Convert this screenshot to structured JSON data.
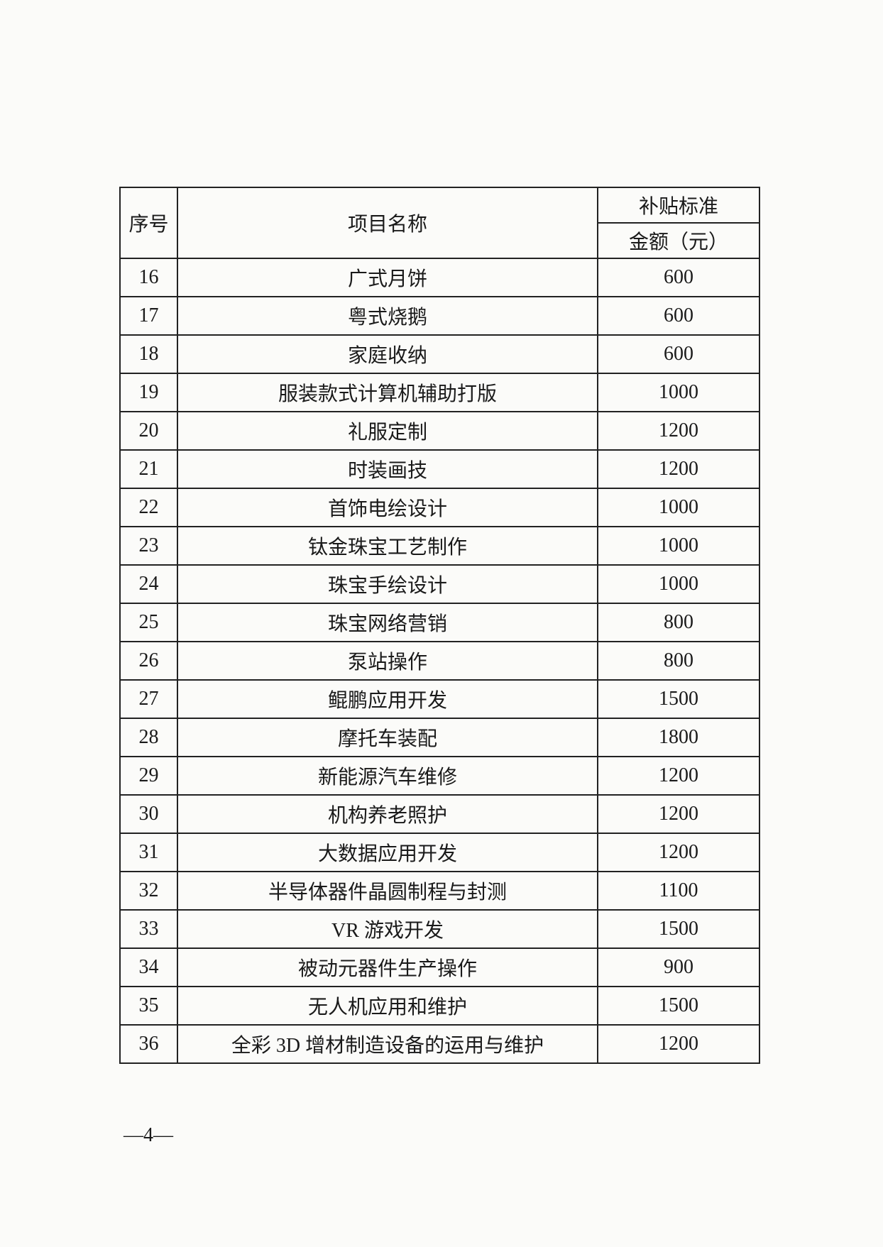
{
  "table": {
    "headers": {
      "index": "序号",
      "name": "项目名称",
      "standard": "补贴标准",
      "amount": "金额（元）"
    },
    "rows": [
      {
        "no": "16",
        "name": "广式月饼",
        "amount": "600"
      },
      {
        "no": "17",
        "name": "粤式烧鹅",
        "amount": "600"
      },
      {
        "no": "18",
        "name": "家庭收纳",
        "amount": "600"
      },
      {
        "no": "19",
        "name": "服装款式计算机辅助打版",
        "amount": "1000"
      },
      {
        "no": "20",
        "name": "礼服定制",
        "amount": "1200"
      },
      {
        "no": "21",
        "name": "时装画技",
        "amount": "1200"
      },
      {
        "no": "22",
        "name": "首饰电绘设计",
        "amount": "1000"
      },
      {
        "no": "23",
        "name": "钛金珠宝工艺制作",
        "amount": "1000"
      },
      {
        "no": "24",
        "name": "珠宝手绘设计",
        "amount": "1000"
      },
      {
        "no": "25",
        "name": "珠宝网络营销",
        "amount": "800"
      },
      {
        "no": "26",
        "name": "泵站操作",
        "amount": "800"
      },
      {
        "no": "27",
        "name": "鲲鹏应用开发",
        "amount": "1500"
      },
      {
        "no": "28",
        "name": "摩托车装配",
        "amount": "1800"
      },
      {
        "no": "29",
        "name": "新能源汽车维修",
        "amount": "1200"
      },
      {
        "no": "30",
        "name": "机构养老照护",
        "amount": "1200"
      },
      {
        "no": "31",
        "name": "大数据应用开发",
        "amount": "1200"
      },
      {
        "no": "32",
        "name": "半导体器件晶圆制程与封测",
        "amount": "1100"
      },
      {
        "no": "33",
        "name": "VR 游戏开发",
        "amount": "1500"
      },
      {
        "no": "34",
        "name": "被动元器件生产操作",
        "amount": "900"
      },
      {
        "no": "35",
        "name": "无人机应用和维护",
        "amount": "1500"
      },
      {
        "no": "36",
        "name": "全彩 3D 增材制造设备的运用与维护",
        "amount": "1200"
      }
    ]
  },
  "footer": {
    "page_number": "—4—"
  }
}
